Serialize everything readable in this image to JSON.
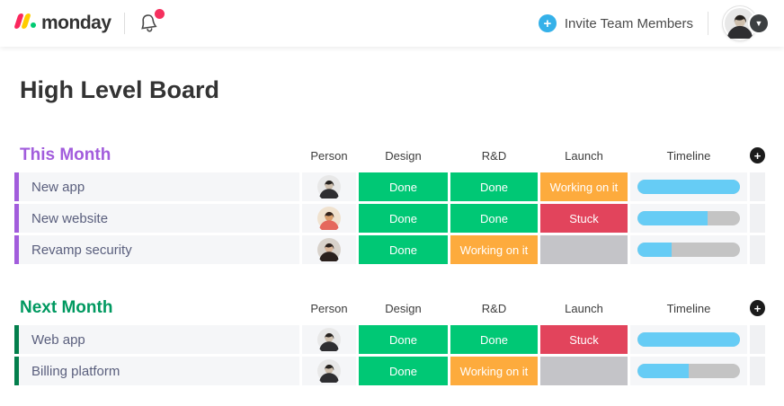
{
  "header": {
    "logo_text": "monday",
    "invite_label": "Invite Team Members",
    "icons": {
      "logo_mark": "monday-logo-icon",
      "bell": "bell-icon",
      "notification_dot_color": "#f5305e",
      "invite_plus": "plus-icon",
      "invite_plus_color": "#35b1e9",
      "avatar": "user-avatar",
      "avatar_caret": "chevron-down-icon"
    }
  },
  "board": {
    "title": "High Level Board"
  },
  "columns": [
    "Person",
    "Design",
    "R&D",
    "Launch",
    "Timeline"
  ],
  "add_column_icon": "plus-icon",
  "status_colors": {
    "done": "#00c875",
    "working": "#fdab3d",
    "stuck": "#e2445c",
    "empty": "#c4c4c8"
  },
  "timeline_colors": {
    "fill": "#66ccf5",
    "track": "#c4c4c4"
  },
  "groups": [
    {
      "name": "This Month",
      "title_color": "#a25ddc",
      "bar_color": "#a25ddc",
      "rows": [
        {
          "name": "New app",
          "avatar": "man-suit",
          "statuses": [
            {
              "label": "Done",
              "key": "done"
            },
            {
              "label": "Done",
              "key": "done"
            },
            {
              "label": "Working on it",
              "key": "working"
            }
          ],
          "timeline_pct": 100
        },
        {
          "name": "New website",
          "avatar": "man-shirt",
          "statuses": [
            {
              "label": "Done",
              "key": "done"
            },
            {
              "label": "Done",
              "key": "done"
            },
            {
              "label": "Stuck",
              "key": "stuck"
            }
          ],
          "timeline_pct": 68
        },
        {
          "name": "Revamp security",
          "avatar": "woman",
          "statuses": [
            {
              "label": "Done",
              "key": "done"
            },
            {
              "label": "Working on it",
              "key": "working"
            },
            {
              "label": "",
              "key": "empty"
            }
          ],
          "timeline_pct": 33
        }
      ]
    },
    {
      "name": "Next Month",
      "title_color": "#009960",
      "bar_color": "#037f4c",
      "rows": [
        {
          "name": "Web app",
          "avatar": "man-suit",
          "statuses": [
            {
              "label": "Done",
              "key": "done"
            },
            {
              "label": "Done",
              "key": "done"
            },
            {
              "label": "Stuck",
              "key": "stuck"
            }
          ],
          "timeline_pct": 100
        },
        {
          "name": "Billing platform",
          "avatar": "man-suit",
          "statuses": [
            {
              "label": "Done",
              "key": "done"
            },
            {
              "label": "Working on it",
              "key": "working"
            },
            {
              "label": "",
              "key": "empty"
            }
          ],
          "timeline_pct": 50
        }
      ]
    }
  ]
}
